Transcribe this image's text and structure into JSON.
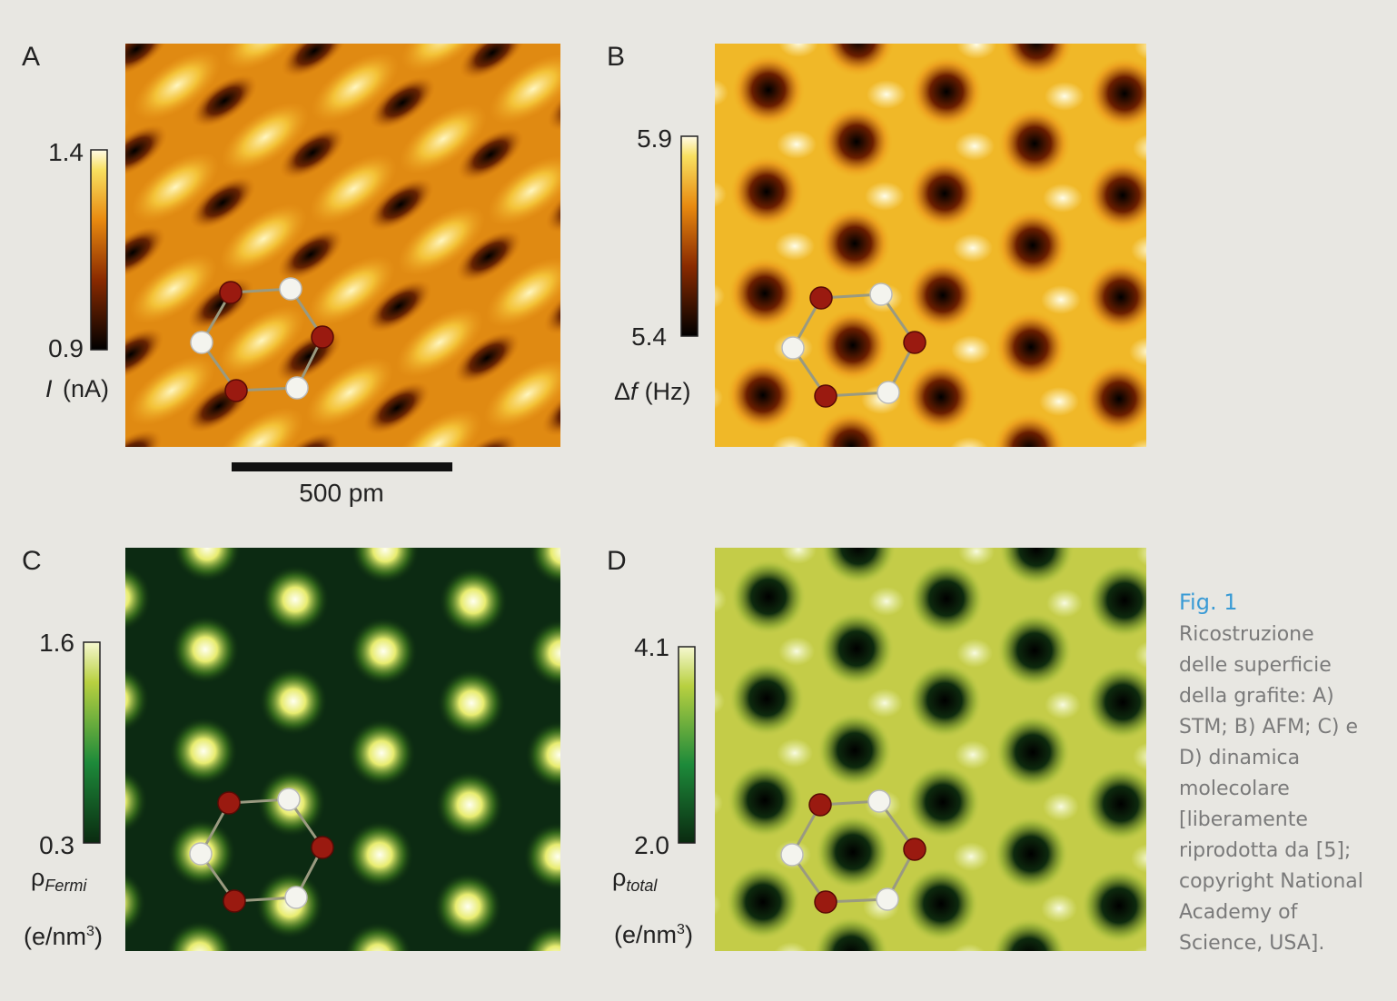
{
  "figure": {
    "panels": [
      {
        "letter": "A",
        "colorbar_max": "1.4",
        "colorbar_min": "0.9",
        "quantity": "I",
        "unit": "(nA)"
      },
      {
        "letter": "B",
        "colorbar_max": "5.9",
        "colorbar_min": "5.4",
        "quantity_prefix": "Δ",
        "quantity": "f",
        "unit": "(Hz)"
      },
      {
        "letter": "C",
        "colorbar_max": "1.6",
        "colorbar_min": "0.3",
        "quantity": "ρ",
        "subscript": "Fermi",
        "unit": "(e/nm",
        "unit_exponent": "3",
        "unit_close": ")"
      },
      {
        "letter": "D",
        "colorbar_max": "4.1",
        "colorbar_min": "2.0",
        "quantity": "ρ",
        "subscript": "total",
        "unit": "(e/nm",
        "unit_exponent": "3",
        "unit_close": ")"
      }
    ],
    "scale_bar": "500 pm"
  },
  "caption": {
    "title": "Fig. 1",
    "lines": [
      "Ricostruzione",
      "delle superficie",
      "della grafite: A)",
      "STM; B) AFM; C) e",
      "D) dinamica",
      "molecolare",
      "[liberamente",
      "riprodotta da [5];",
      "copyright National",
      "Academy of",
      "Science, USA]."
    ]
  }
}
